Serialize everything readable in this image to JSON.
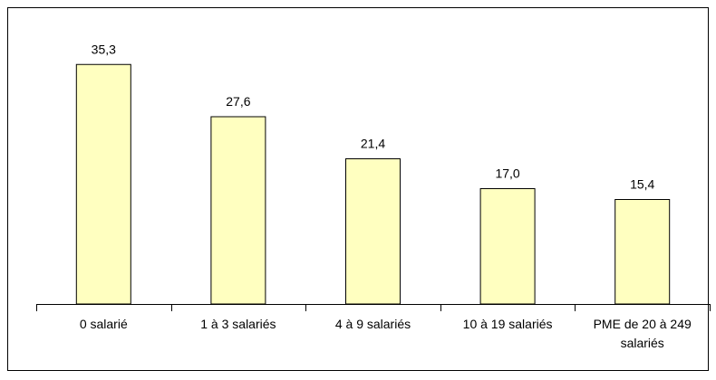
{
  "chart_data": {
    "type": "bar",
    "categories": [
      "0 salarié",
      "1 à 3 salariés",
      "4 à 9 salariés",
      "10 à 19 salariés",
      "PME de 20 à 249 salariés"
    ],
    "values": [
      35.3,
      27.6,
      21.4,
      17.0,
      15.4
    ],
    "value_labels": [
      "35,3",
      "27,6",
      "21,4",
      "17,0",
      "15,4"
    ],
    "color": "#ffffc0",
    "ylim": [
      0,
      40
    ]
  }
}
